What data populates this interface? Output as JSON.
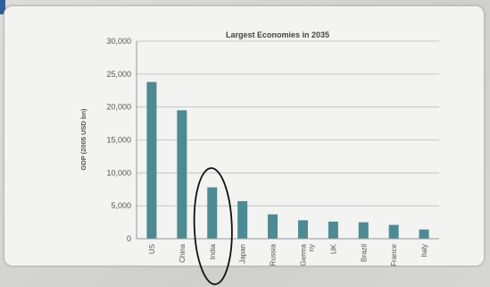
{
  "chart_data": {
    "type": "bar",
    "title": "Largest Economies in 2035",
    "ylabel": "GDP (2005 USD bn)",
    "xlabel": "",
    "categories": [
      "US",
      "China",
      "India",
      "Japan",
      "Russia",
      "Germany",
      "UK",
      "Brazil",
      "France",
      "Italy"
    ],
    "category_display": [
      [
        "US"
      ],
      [
        "China"
      ],
      [
        "India"
      ],
      [
        "Japan"
      ],
      [
        "Russia"
      ],
      [
        "Germa",
        "ny"
      ],
      [
        "UK"
      ],
      [
        "Brazil"
      ],
      [
        "France"
      ],
      [
        "Italy"
      ]
    ],
    "values": [
      23800,
      19500,
      7800,
      5700,
      3700,
      2800,
      2600,
      2500,
      2100,
      1400
    ],
    "ylim": [
      0,
      30000
    ],
    "yticks": [
      0,
      5000,
      10000,
      15000,
      20000,
      25000,
      30000
    ],
    "ytick_labels": [
      "0",
      "5,000",
      "10,000",
      "15,000",
      "20,000",
      "25,000",
      "30,000"
    ],
    "grid": true,
    "highlight_category": "India",
    "colors": {
      "bar": "#4d8a93",
      "grid": "#bdbdbb",
      "axis": "#9a9a98",
      "highlight_ring": "#111111"
    }
  }
}
